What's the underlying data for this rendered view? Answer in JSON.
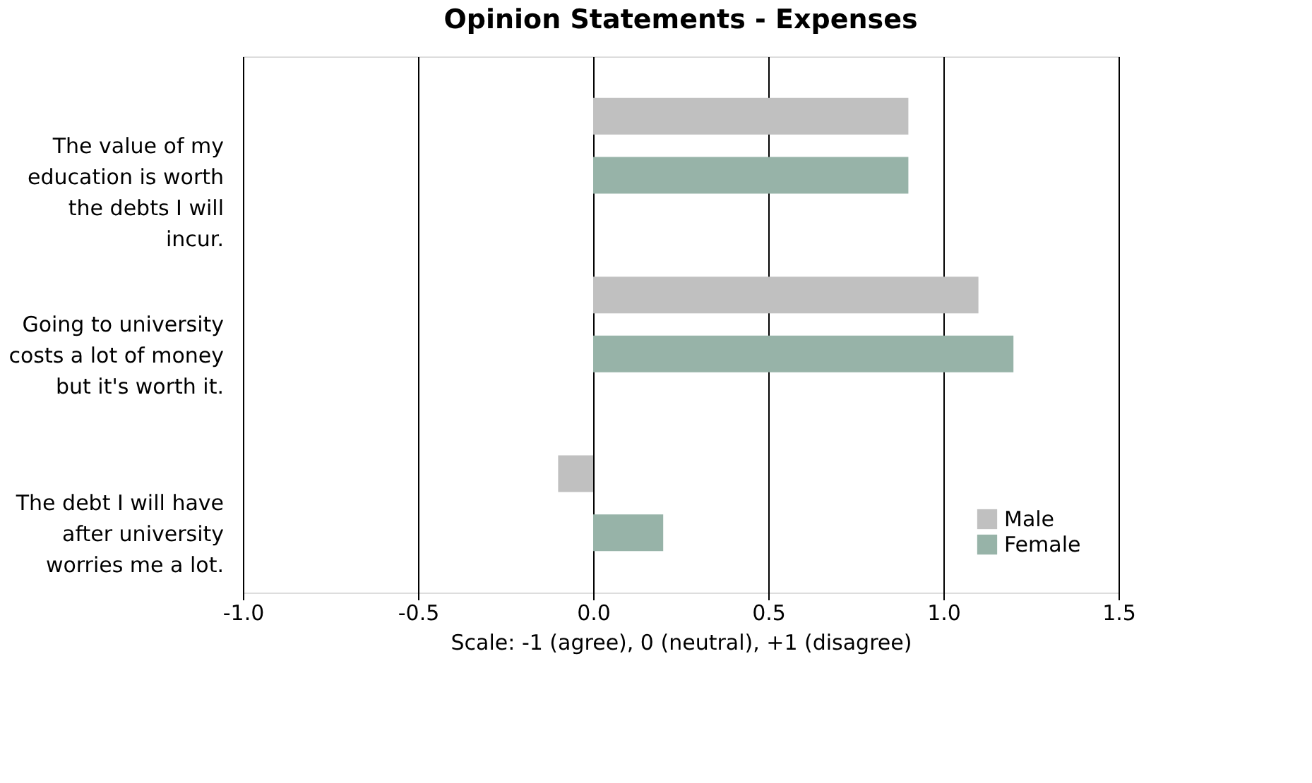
{
  "chart_data": {
    "type": "bar",
    "orientation": "horizontal",
    "title": "Opinion Statements - Expenses",
    "xlabel": "Scale: -1 (agree), 0 (neutral), +1 (disagree)",
    "categories": [
      "The value of my education is worth the debts I will incur.",
      "Going to university costs a lot of money but it's worth it.",
      "The debt I will have after university worries me a lot."
    ],
    "series": [
      {
        "name": "Male",
        "color": "#c0c0c0",
        "values": [
          0.9,
          1.1,
          -0.1
        ]
      },
      {
        "name": "Female",
        "color": "#97b3a8",
        "values": [
          0.9,
          1.2,
          0.2
        ]
      }
    ],
    "xlim": [
      -1.0,
      1.5
    ],
    "xticks": [
      {
        "value": -1.0,
        "label": "-1.0"
      },
      {
        "value": -0.5,
        "label": "-0.5"
      },
      {
        "value": 0,
        "label": "0.0"
      },
      {
        "value": 0.5,
        "label": "0.5"
      },
      {
        "value": 1.0,
        "label": "1.0"
      },
      {
        "value": 1.5,
        "label": "1.5"
      }
    ],
    "grid": "x",
    "legend": "bottom right"
  }
}
